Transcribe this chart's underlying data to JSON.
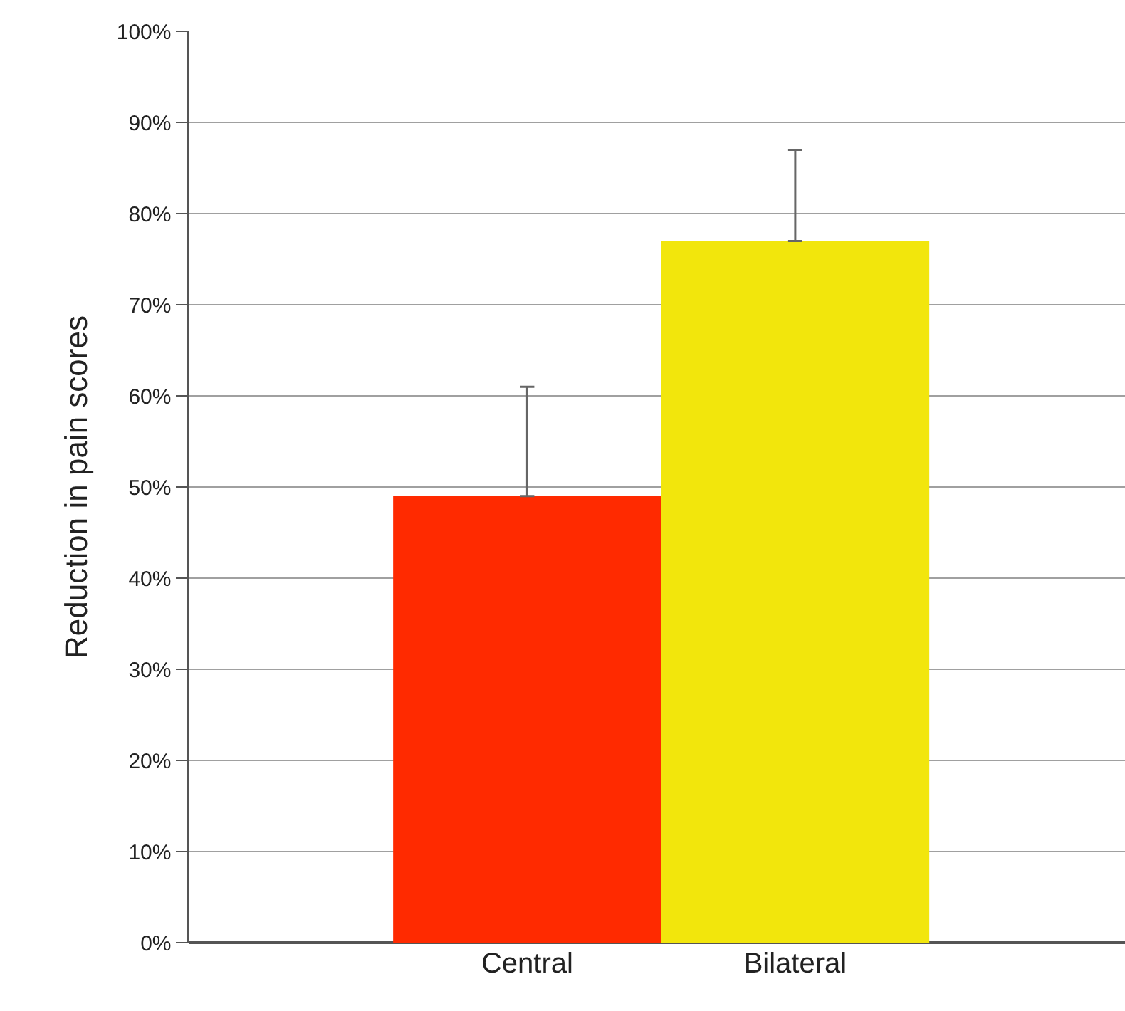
{
  "chart_data": {
    "type": "bar",
    "ylabel": "Reduction in pain scores",
    "categories": [
      "Central",
      "Bilateral"
    ],
    "values": [
      49,
      77
    ],
    "colors": [
      "#ff2a00",
      "#f2e60c"
    ],
    "errors": [
      [
        49,
        61
      ],
      [
        77,
        87
      ]
    ],
    "ylim": [
      0,
      100
    ],
    "yticks": [
      {
        "value": 0,
        "label": "0%"
      },
      {
        "value": 10,
        "label": "10%"
      },
      {
        "value": 20,
        "label": "20%"
      },
      {
        "value": 30,
        "label": "30%"
      },
      {
        "value": 40,
        "label": "40%"
      },
      {
        "value": 50,
        "label": "50%"
      },
      {
        "value": 60,
        "label": "60%"
      },
      {
        "value": 70,
        "label": "70%"
      },
      {
        "value": 80,
        "label": "80%"
      },
      {
        "value": 90,
        "label": "90%"
      },
      {
        "value": 100,
        "label": "100%"
      }
    ],
    "grid": "y"
  }
}
